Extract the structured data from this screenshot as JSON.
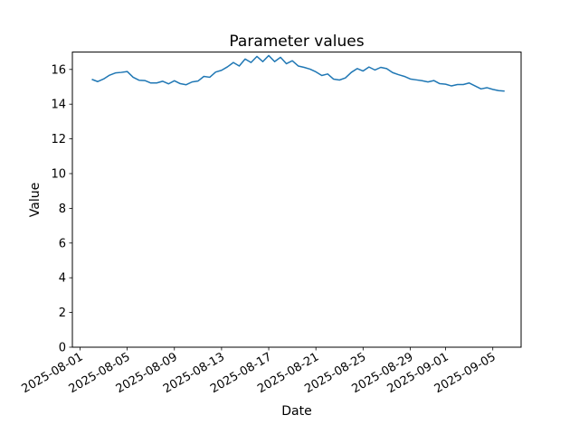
{
  "chart_data": {
    "type": "line",
    "title": "Parameter values",
    "xlabel": "Date",
    "ylabel": "Value",
    "series_name": "Parameter values",
    "series_color": "#1f77b4",
    "text_color": "#000000",
    "grid": false,
    "legend": "none",
    "x_start": "2025-08-02 00:00",
    "x_step_hours": 12,
    "x_end": "2025-09-06 00:00",
    "x_tick_labels": [
      "2025-08-01",
      "2025-08-05",
      "2025-08-09",
      "2025-08-13",
      "2025-08-17",
      "2025-08-21",
      "2025-08-25",
      "2025-08-29",
      "2025-09-01",
      "2025-09-05"
    ],
    "x_tick_day_offsets": [
      0,
      4,
      8,
      12,
      16,
      20,
      24,
      28,
      31,
      35
    ],
    "x_tick_rotation_deg": 30,
    "xlim_days": [
      -0.65,
      37.4
    ],
    "y_ticks": [
      0,
      2,
      4,
      6,
      8,
      10,
      12,
      14,
      16
    ],
    "ylim": [
      0,
      17
    ],
    "data_start_day_offset": 1.0,
    "data_step_days": 0.5,
    "values": [
      15.43,
      15.3,
      15.45,
      15.67,
      15.8,
      15.83,
      15.88,
      15.55,
      15.38,
      15.36,
      15.22,
      15.22,
      15.32,
      15.17,
      15.35,
      15.18,
      15.12,
      15.28,
      15.33,
      15.6,
      15.55,
      15.85,
      15.95,
      16.15,
      16.4,
      16.2,
      16.6,
      16.4,
      16.75,
      16.45,
      16.8,
      16.45,
      16.7,
      16.33,
      16.5,
      16.2,
      16.12,
      16.02,
      15.86,
      15.65,
      15.74,
      15.44,
      15.39,
      15.51,
      15.83,
      16.05,
      15.91,
      16.14,
      15.97,
      16.12,
      16.05,
      15.82,
      15.7,
      15.6,
      15.45,
      15.4,
      15.35,
      15.28,
      15.36,
      15.18,
      15.15,
      15.05,
      15.13,
      15.13,
      15.22,
      15.05,
      14.88,
      14.95,
      14.85,
      14.78,
      14.75
    ]
  }
}
